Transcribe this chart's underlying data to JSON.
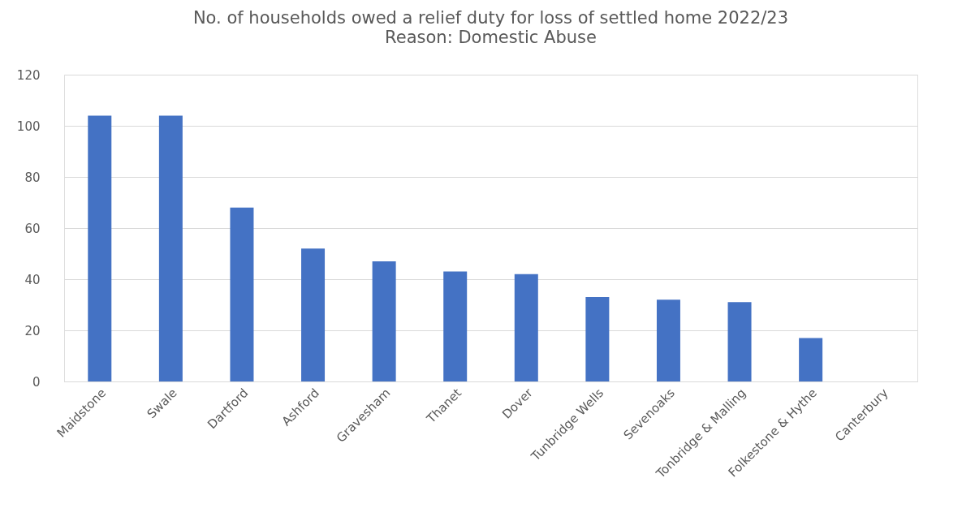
{
  "chart_data": {
    "type": "bar",
    "title": "No. of households owed a relief duty for loss of settled home 2022/23",
    "subtitle": "Reason: Domestic Abuse",
    "categories": [
      "Maidstone",
      "Swale",
      "Dartford",
      "Ashford",
      "Gravesham",
      "Thanet",
      "Dover",
      "Tunbridge Wells",
      "Sevenoaks",
      "Tonbridge & Malling",
      "Folkestone & Hythe",
      "Canterbury"
    ],
    "values": [
      104,
      104,
      68,
      52,
      47,
      43,
      42,
      33,
      32,
      31,
      17,
      null
    ],
    "color": "#4472c4",
    "ylim": [
      0,
      120
    ],
    "yticks": [
      0,
      20,
      40,
      60,
      80,
      100,
      120
    ],
    "grid": "y"
  }
}
